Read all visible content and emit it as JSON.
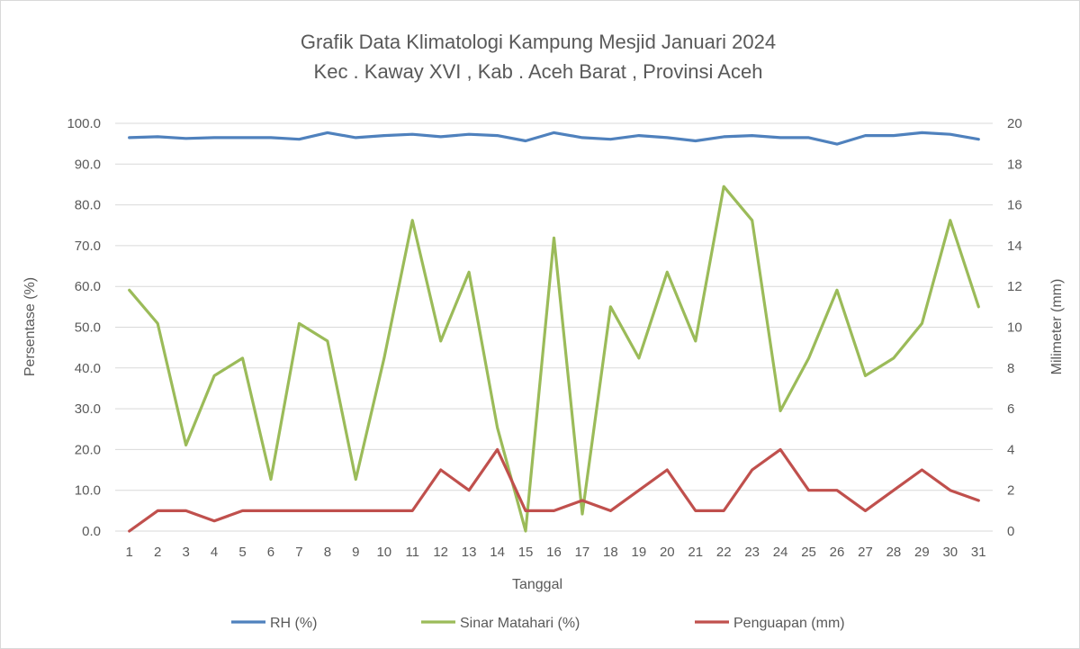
{
  "chart_data": {
    "type": "line",
    "title": "Grafik Data Klimatologi Kampung Mesjid Januari 2024",
    "subtitle": "Kec . Kaway XVI , Kab . Aceh Barat , Provinsi  Aceh",
    "xlabel": "Tanggal",
    "ylabel_left": "Persentase (%)",
    "ylabel_right": "Milimeter (mm)",
    "ylim_left": [
      0,
      100
    ],
    "ylim_right": [
      0,
      20
    ],
    "y_ticks_left": [
      "0.0",
      "10.0",
      "20.0",
      "30.0",
      "40.0",
      "50.0",
      "60.0",
      "70.0",
      "80.0",
      "90.0",
      "100.0"
    ],
    "y_ticks_right": [
      "0",
      "2",
      "4",
      "6",
      "8",
      "10",
      "12",
      "14",
      "16",
      "18",
      "20"
    ],
    "x": [
      "1",
      "2",
      "3",
      "4",
      "5",
      "6",
      "7",
      "8",
      "9",
      "10",
      "11",
      "12",
      "13",
      "14",
      "15",
      "16",
      "17",
      "18",
      "19",
      "20",
      "21",
      "22",
      "23",
      "24",
      "25",
      "26",
      "27",
      "28",
      "29",
      "30",
      "31"
    ],
    "grid": true,
    "legend_position": "bottom",
    "series": [
      {
        "name": "RH (%)",
        "axis": "left",
        "color": "#4F81BD",
        "values": [
          96.5,
          96.7,
          96.3,
          96.5,
          96.5,
          96.5,
          96.1,
          97.7,
          96.5,
          97.0,
          97.3,
          96.7,
          97.3,
          97.0,
          95.7,
          97.7,
          96.5,
          96.1,
          97.0,
          96.5,
          95.7,
          96.7,
          97.0,
          96.5,
          96.5,
          94.9,
          97.0,
          97.0,
          97.7,
          97.3,
          96.1
        ]
      },
      {
        "name": "Sinar Matahari (%)",
        "axis": "left",
        "color": "#9BBB59",
        "values": [
          59.1,
          50.9,
          21.1,
          38.1,
          42.4,
          12.7,
          50.9,
          46.6,
          12.7,
          42.4,
          76.2,
          46.6,
          63.5,
          25.4,
          0.0,
          71.9,
          4.2,
          55.0,
          42.4,
          63.5,
          46.6,
          84.5,
          76.2,
          29.5,
          42.4,
          59.1,
          38.1,
          42.4,
          50.9,
          76.2,
          55.0
        ]
      },
      {
        "name": "Penguapan (mm)",
        "axis": "right",
        "color": "#C0504D",
        "values": [
          0,
          1,
          1,
          0.5,
          1,
          1,
          1,
          1,
          1,
          1,
          1,
          3,
          2,
          4,
          1,
          1,
          1.5,
          1,
          2,
          3,
          1,
          1,
          3,
          4,
          2,
          2,
          1,
          2,
          3,
          2,
          1.5
        ]
      }
    ]
  }
}
